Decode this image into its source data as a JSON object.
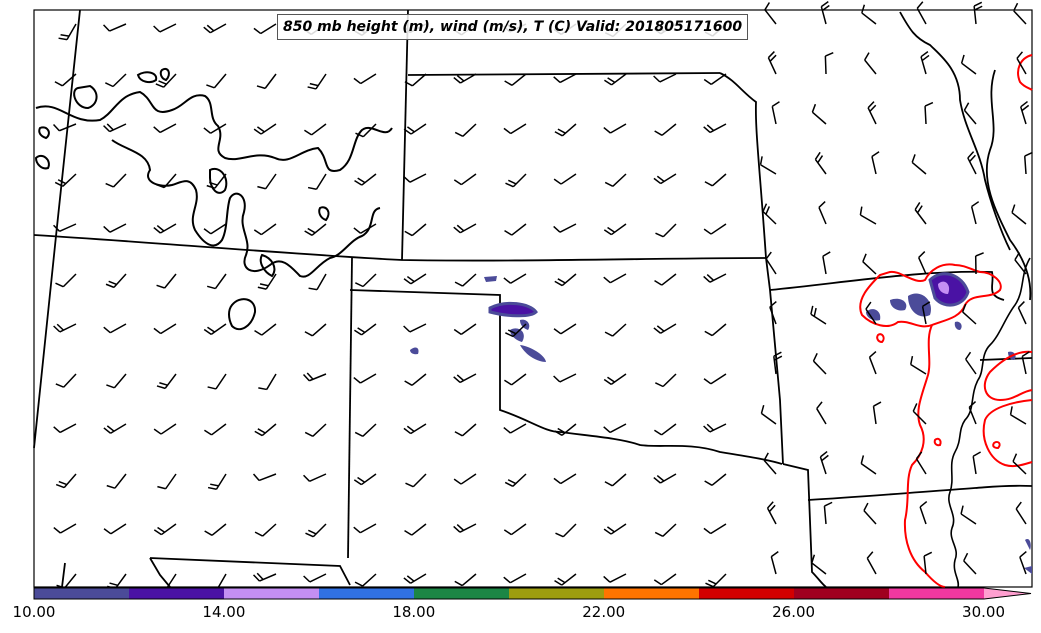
{
  "title": "850 mb height (m), wind (m/s), T (C) Valid: 201805171600",
  "colorbar": {
    "colors": [
      "#4b4b99",
      "#4a12a4",
      "#c48ff3",
      "#3171e2",
      "#1c8645",
      "#9d9d10",
      "#ff7400",
      "#d30000",
      "#a0001f",
      "#f038a0",
      "#ff9fd0"
    ],
    "tick_labels": [
      "10.00",
      "14.00",
      "18.00",
      "22.00",
      "26.00",
      "30.00"
    ],
    "tick_values": [
      10,
      14,
      18,
      22,
      26,
      30
    ],
    "range": [
      10,
      31
    ]
  },
  "contour_color": "#ff0000",
  "barb_color": "#000000"
}
